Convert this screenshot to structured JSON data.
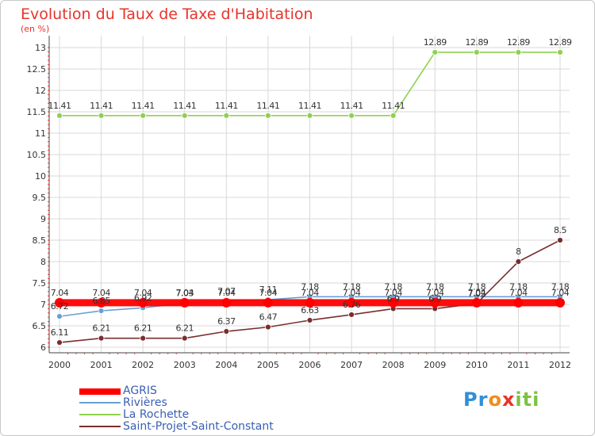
{
  "chart_data": {
    "type": "line",
    "title": "Evolution du Taux de Taxe d'Habitation",
    "subtitle": "(en %)",
    "categories": [
      "2000",
      "2001",
      "2002",
      "2003",
      "2004",
      "2005",
      "2006",
      "2007",
      "2008",
      "2009",
      "2010",
      "2011",
      "2012"
    ],
    "ylim": [
      6,
      13
    ],
    "yticks": [
      "6",
      "6.5",
      "7",
      "7.5",
      "8",
      "8.5",
      "9",
      "9.5",
      "10",
      "10.5",
      "11",
      "11.5",
      "12",
      "12.5",
      "13"
    ],
    "grid": true,
    "legend_position": "bottom-left",
    "series": [
      {
        "name": "AGRIS",
        "color": "#ff0000",
        "values": [
          7.04,
          7.04,
          7.04,
          7.04,
          7.04,
          7.04,
          7.04,
          7.04,
          7.04,
          7.04,
          7.04,
          7.04,
          7.04
        ],
        "labels": [
          "7.04",
          "7.04",
          "7.04",
          "7.04",
          "7.04",
          "7.04",
          "7.04",
          "7.04",
          "7.04",
          "7.04",
          "7.04",
          "7.04",
          "7.04"
        ]
      },
      {
        "name": "Rivières",
        "color": "#6a9fd4",
        "values": [
          6.72,
          6.85,
          6.92,
          7.03,
          7.07,
          7.11,
          7.18,
          7.18,
          7.18,
          7.18,
          7.18,
          7.18,
          7.18
        ],
        "labels": [
          "6.72",
          "6.85",
          "6.92",
          "7.03",
          "7.07",
          "7.11",
          "7.18",
          "7.18",
          "7.18",
          "7.18",
          "7.18",
          "7.18",
          "7.18"
        ]
      },
      {
        "name": "La Rochette",
        "color": "#8fd14f",
        "values": [
          11.41,
          11.41,
          11.41,
          11.41,
          11.41,
          11.41,
          11.41,
          11.41,
          11.41,
          12.89,
          12.89,
          12.89,
          12.89
        ],
        "labels": [
          "11.41",
          "11.41",
          "11.41",
          "11.41",
          "11.41",
          "11.41",
          "11.41",
          "11.41",
          "11.41",
          "12.89",
          "12.89",
          "12.89",
          "12.89"
        ]
      },
      {
        "name": "Saint-Projet-Saint-Constant",
        "color": "#7a2e2e",
        "values": [
          6.11,
          6.21,
          6.21,
          6.21,
          6.37,
          6.47,
          6.63,
          6.76,
          6.9,
          6.9,
          7.02,
          8,
          8.5
        ],
        "labels": [
          "6.11",
          "6.21",
          "6.21",
          "6.21",
          "6.37",
          "6.47",
          "6.63",
          "6.76",
          "6.9",
          "6.9",
          "7.02",
          "8",
          "8.5"
        ]
      }
    ]
  },
  "legend": {
    "items": [
      {
        "label": "AGRIS",
        "color": "#ff0000"
      },
      {
        "label": "Rivières",
        "color": "#6a9fd4"
      },
      {
        "label": "La Rochette",
        "color": "#8fd14f"
      },
      {
        "label": "Saint-Projet-Saint-Constant",
        "color": "#7a2e2e"
      }
    ]
  },
  "logo": {
    "parts": [
      "Pr",
      "o",
      "x",
      "iti"
    ]
  }
}
